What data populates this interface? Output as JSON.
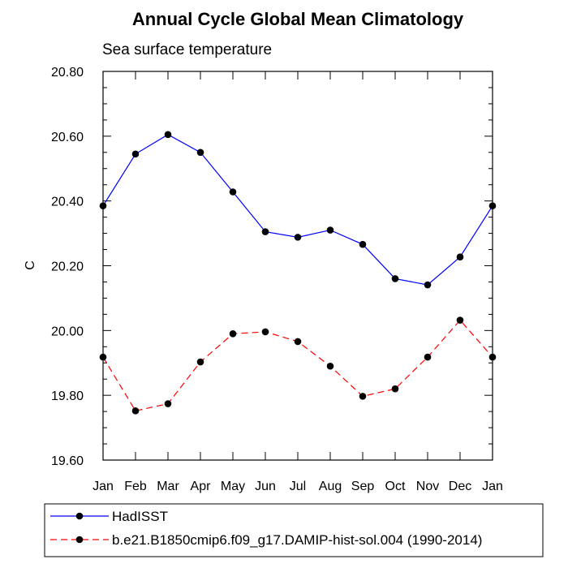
{
  "chart_data": {
    "type": "line",
    "title": "Annual Cycle Global Mean Climatology",
    "subtitle": "Sea surface temperature",
    "xlabel": "",
    "ylabel": "C",
    "categories": [
      "Jan",
      "Feb",
      "Mar",
      "Apr",
      "May",
      "Jun",
      "Jul",
      "Aug",
      "Sep",
      "Oct",
      "Nov",
      "Dec",
      "Jan"
    ],
    "ylim": [
      19.6,
      20.8
    ],
    "yticks": [
      19.6,
      19.8,
      20.0,
      20.2,
      20.4,
      20.6,
      20.8
    ],
    "ytick_labels": [
      "19.60",
      "19.80",
      "20.00",
      "20.20",
      "20.40",
      "20.60",
      "20.80"
    ],
    "grid": false,
    "legend_position": "bottom",
    "series": [
      {
        "name": "HadISST",
        "color": "#0000ff",
        "line_style": "solid",
        "marker": "filled-circle",
        "values": [
          20.385,
          20.545,
          20.605,
          20.55,
          20.428,
          20.305,
          20.288,
          20.31,
          20.266,
          20.16,
          20.141,
          20.227,
          20.385
        ]
      },
      {
        "name": "b.e21.B1850cmip6.f09_g17.DAMIP-hist-sol.004 (1990-2014)",
        "color": "#ff0000",
        "line_style": "dashed",
        "marker": "filled-circle",
        "values": [
          19.918,
          19.752,
          19.774,
          19.903,
          19.99,
          19.996,
          19.966,
          19.89,
          19.797,
          19.82,
          19.918,
          20.032,
          19.918
        ]
      }
    ]
  }
}
